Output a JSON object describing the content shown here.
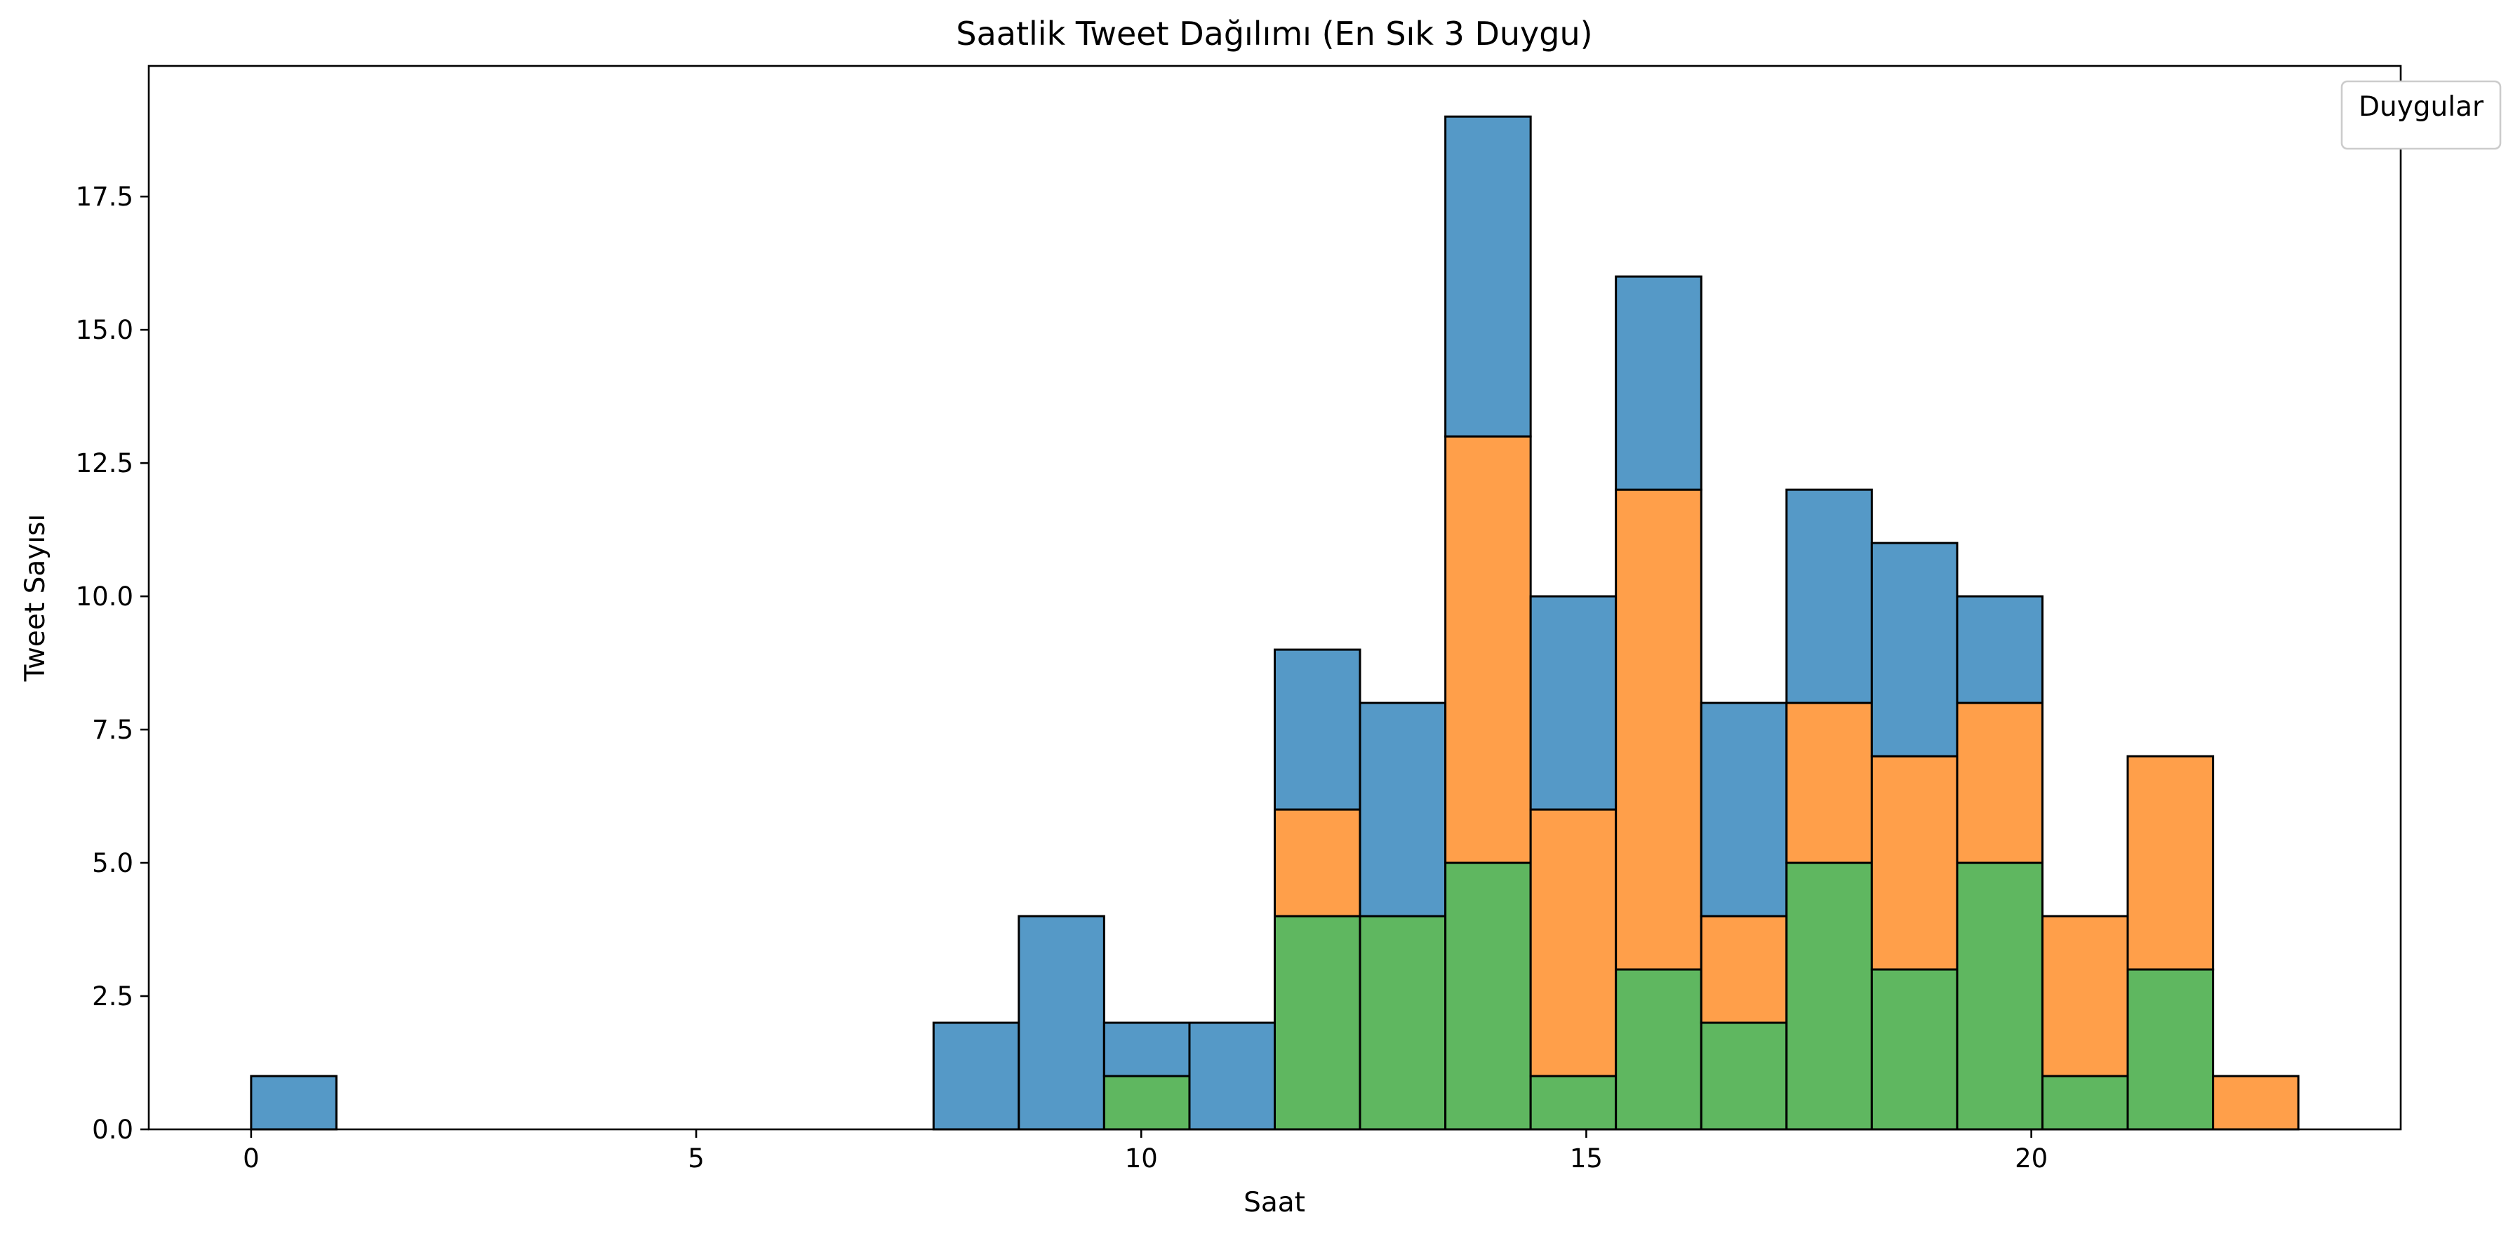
{
  "chart_data": {
    "type": "bar",
    "stacked": true,
    "title": "Saatlik Tweet Dağılımı (En Sık 3 Duygu)",
    "xlabel": "Saat",
    "ylabel": "Tweet Sayısı",
    "xlim": [
      -1.15,
      24.15
    ],
    "ylim": [
      0,
      19.95
    ],
    "xticks": [
      0,
      5,
      10,
      15,
      20
    ],
    "xtick_labels": [
      "0",
      "5",
      "10",
      "15",
      "20"
    ],
    "yticks": [
      0,
      2.5,
      5,
      7.5,
      10,
      12.5,
      15,
      17.5
    ],
    "ytick_labels": [
      "0.0",
      "2.5",
      "5.0",
      "7.5",
      "10.0",
      "12.5",
      "15.0",
      "17.5"
    ],
    "bins": [
      [
        0,
        0.958
      ],
      [
        7.667,
        8.625
      ],
      [
        8.625,
        9.583
      ],
      [
        9.583,
        10.542
      ],
      [
        10.542,
        11.5
      ],
      [
        11.5,
        12.458
      ],
      [
        12.458,
        13.417
      ],
      [
        13.417,
        14.375
      ],
      [
        14.375,
        15.333
      ],
      [
        15.333,
        16.292
      ],
      [
        16.292,
        17.25
      ],
      [
        17.25,
        18.208
      ],
      [
        18.208,
        19.167
      ],
      [
        19.167,
        20.125
      ],
      [
        20.125,
        21.083
      ],
      [
        21.083,
        22.042
      ],
      [
        22.042,
        23
      ]
    ],
    "series": [
      {
        "color": "#5fb760",
        "values": [
          0,
          0,
          0,
          1,
          0,
          4,
          4,
          5,
          1,
          3,
          2,
          5,
          3,
          5,
          1,
          3,
          0
        ]
      },
      {
        "color": "#ff9f4a",
        "values": [
          0,
          0,
          0,
          0,
          0,
          2,
          0,
          8,
          5,
          9,
          2,
          3,
          4,
          3,
          3,
          4,
          1
        ]
      },
      {
        "color": "#5599c7",
        "values": [
          1,
          2,
          4,
          1,
          2,
          3,
          4,
          6,
          4,
          4,
          4,
          4,
          4,
          2,
          0,
          0,
          0
        ]
      }
    ],
    "legend": {
      "title": "Duygular",
      "position": "top-right"
    },
    "grid": false
  }
}
